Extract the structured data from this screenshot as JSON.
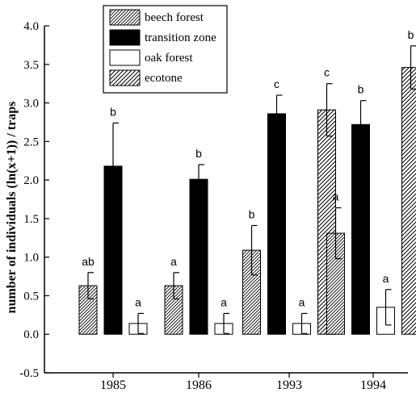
{
  "chart_data": {
    "type": "bar",
    "title": "",
    "xlabel": "",
    "ylabel": "number of individuals (ln(x+1)) / traps",
    "ylim": [
      -0.5,
      4.0
    ],
    "yticks": [
      "-0.5",
      "0.0",
      "0.5",
      "1.0",
      "1.5",
      "2.0",
      "2.5",
      "3.0",
      "3.5",
      "4.0"
    ],
    "categories": [
      "1985",
      "1986",
      "1993",
      "1994"
    ],
    "grid": false,
    "legend_position": "top-center",
    "series": [
      {
        "name": "beech forest",
        "pattern": "hatch-fine",
        "values": [
          0.63,
          0.63,
          1.09,
          1.31
        ],
        "errors": [
          0.17,
          0.17,
          0.32,
          0.33
        ],
        "labels": [
          "ab",
          "a",
          "b",
          "a"
        ]
      },
      {
        "name": "transition zone",
        "pattern": "solid-black",
        "values": [
          2.18,
          2.01,
          2.86,
          2.72
        ],
        "errors": [
          0.56,
          0.19,
          0.24,
          0.31
        ],
        "labels": [
          "b",
          "b",
          "c",
          "b"
        ]
      },
      {
        "name": "oak forest",
        "pattern": "white",
        "values": [
          0.14,
          0.14,
          0.14,
          0.35
        ],
        "errors": [
          0.13,
          0.13,
          0.13,
          0.23
        ],
        "labels": [
          "a",
          "a",
          "a",
          "a"
        ]
      },
      {
        "name": "ecotone",
        "pattern": "hatch-wide",
        "values": [
          null,
          null,
          2.91,
          3.46
        ],
        "errors": [
          null,
          null,
          0.34,
          0.28
        ],
        "labels": [
          null,
          null,
          "c",
          "b"
        ]
      }
    ]
  }
}
